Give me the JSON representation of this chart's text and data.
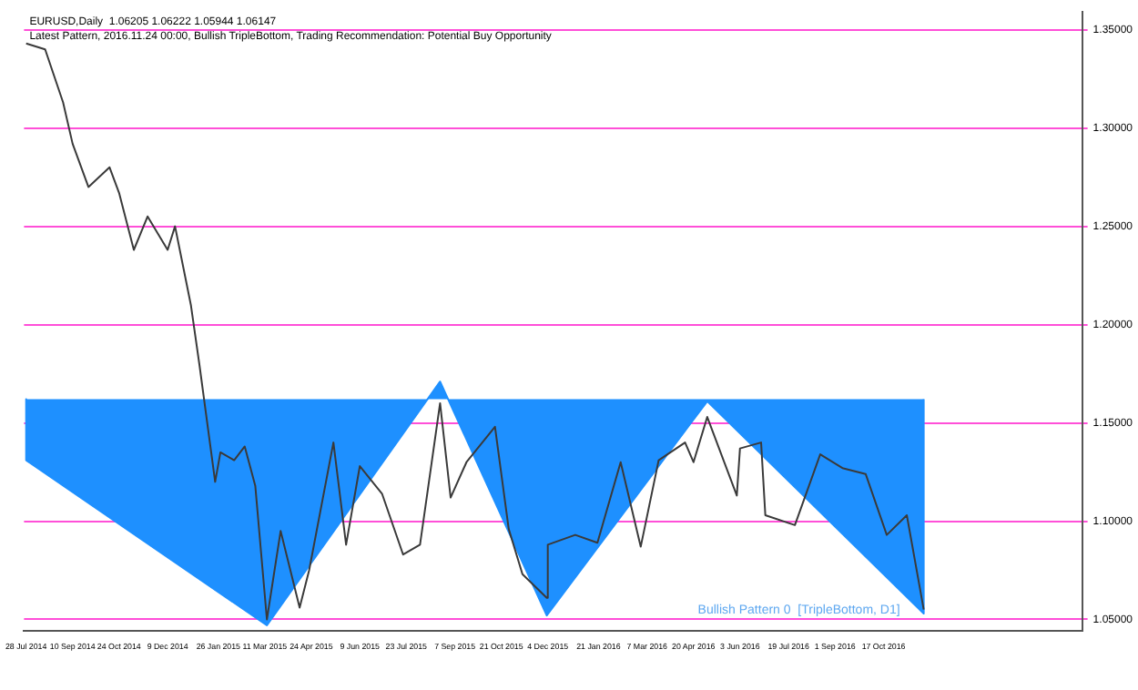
{
  "chart_data": {
    "type": "line",
    "title": "EURUSD,Daily  1.06205 1.06222 1.05944 1.06147",
    "subtitle": "Latest Pattern, 2016.11.24 00:00, Bullish TripleBottom, Trading Recommendation: Potential Buy Opportunity",
    "series": [
      {
        "color": "#3a3a3a",
        "x": [
          "2014-07-28",
          "2014-08-15",
          "2014-09-01",
          "2014-09-10",
          "2014-09-25",
          "2014-10-15",
          "2014-10-24",
          "2014-11-07",
          "2014-11-20",
          "2014-12-09",
          "2014-12-16",
          "2014-12-31",
          "2015-01-08",
          "2015-01-23",
          "2015-01-28",
          "2015-02-10",
          "2015-02-20",
          "2015-03-02",
          "2015-03-13",
          "2015-03-26",
          "2015-04-13",
          "2015-04-22",
          "2015-05-15",
          "2015-05-27",
          "2015-06-09",
          "2015-06-30",
          "2015-07-20",
          "2015-08-05",
          "2015-08-24",
          "2015-09-03",
          "2015-09-18",
          "2015-10-15",
          "2015-10-28",
          "2015-11-10",
          "2015-12-03",
          "2015-12-04",
          "2015-12-30",
          "2016-01-20",
          "2016-02-11",
          "2016-03-01",
          "2016-03-18",
          "2016-04-12",
          "2016-04-20",
          "2016-05-03",
          "2016-05-31",
          "2016-06-03",
          "2016-06-23",
          "2016-06-27",
          "2016-07-25",
          "2016-08-18",
          "2016-09-08",
          "2016-09-30",
          "2016-10-20",
          "2016-11-08",
          "2016-11-24"
        ],
        "values": [
          1.343,
          1.34,
          1.313,
          1.292,
          1.27,
          1.28,
          1.267,
          1.238,
          1.255,
          1.238,
          1.25,
          1.21,
          1.18,
          1.12,
          1.135,
          1.131,
          1.138,
          1.118,
          1.05,
          1.095,
          1.056,
          1.075,
          1.14,
          1.088,
          1.128,
          1.114,
          1.083,
          1.088,
          1.16,
          1.112,
          1.13,
          1.148,
          1.096,
          1.073,
          1.061,
          1.088,
          1.093,
          1.089,
          1.13,
          1.087,
          1.131,
          1.14,
          1.13,
          1.153,
          1.113,
          1.137,
          1.14,
          1.103,
          1.098,
          1.134,
          1.127,
          1.124,
          1.093,
          1.103,
          1.055
        ]
      },
      {
        "type": "area",
        "color": "#1e90ff",
        "x": [
          "2014-07-28",
          "2014-07-28",
          "2015-03-13",
          "2015-08-24",
          "2015-12-03",
          "2016-05-03",
          "2016-11-24",
          "2016-11-24"
        ],
        "values": [
          1.162,
          1.131,
          1.047,
          1.171,
          1.052,
          1.161,
          1.053,
          1.162
        ]
      }
    ],
    "xlim": [
      "2014-07-26",
      "2017-04-23"
    ],
    "xticks": [
      {
        "value": "2014-07-28",
        "label": "28 Jul 2014"
      },
      {
        "value": "2014-09-10",
        "label": "10 Sep 2014"
      },
      {
        "value": "2014-10-24",
        "label": "24 Oct 2014"
      },
      {
        "value": "2014-12-09",
        "label": "9 Dec 2014"
      },
      {
        "value": "2015-01-26",
        "label": "26 Jan 2015"
      },
      {
        "value": "2015-03-11",
        "label": "11 Mar 2015"
      },
      {
        "value": "2015-04-24",
        "label": "24 Apr 2015"
      },
      {
        "value": "2015-06-09",
        "label": "9 Jun 2015"
      },
      {
        "value": "2015-07-23",
        "label": "23 Jul 2015"
      },
      {
        "value": "2015-09-07",
        "label": "7 Sep 2015"
      },
      {
        "value": "2015-10-21",
        "label": "21 Oct 2015"
      },
      {
        "value": "2015-12-04",
        "label": "4 Dec 2015"
      },
      {
        "value": "2016-01-21",
        "label": "21 Jan 2016"
      },
      {
        "value": "2016-03-07",
        "label": "7 Mar 2016"
      },
      {
        "value": "2016-04-20",
        "label": "20 Apr 2016"
      },
      {
        "value": "2016-06-03",
        "label": "3 Jun 2016"
      },
      {
        "value": "2016-07-19",
        "label": "19 Jul 2016"
      },
      {
        "value": "2016-09-01",
        "label": "1 Sep 2016"
      },
      {
        "value": "2016-10-17",
        "label": "17 Oct 2016"
      }
    ],
    "ylim": [
      1.044,
      1.359
    ],
    "yticks": [
      {
        "value": 1.05,
        "label": "1.05000"
      },
      {
        "value": 1.1,
        "label": "1.10000"
      },
      {
        "value": 1.15,
        "label": "1.15000"
      },
      {
        "value": 1.2,
        "label": "1.20000"
      },
      {
        "value": 1.25,
        "label": "1.25000"
      },
      {
        "value": 1.3,
        "label": "1.30000"
      },
      {
        "value": 1.35,
        "label": "1.35000"
      }
    ],
    "grid": "y",
    "legend": false,
    "annotations": [
      "Bullish Pattern 0  [TripleBottom, D1]"
    ]
  }
}
